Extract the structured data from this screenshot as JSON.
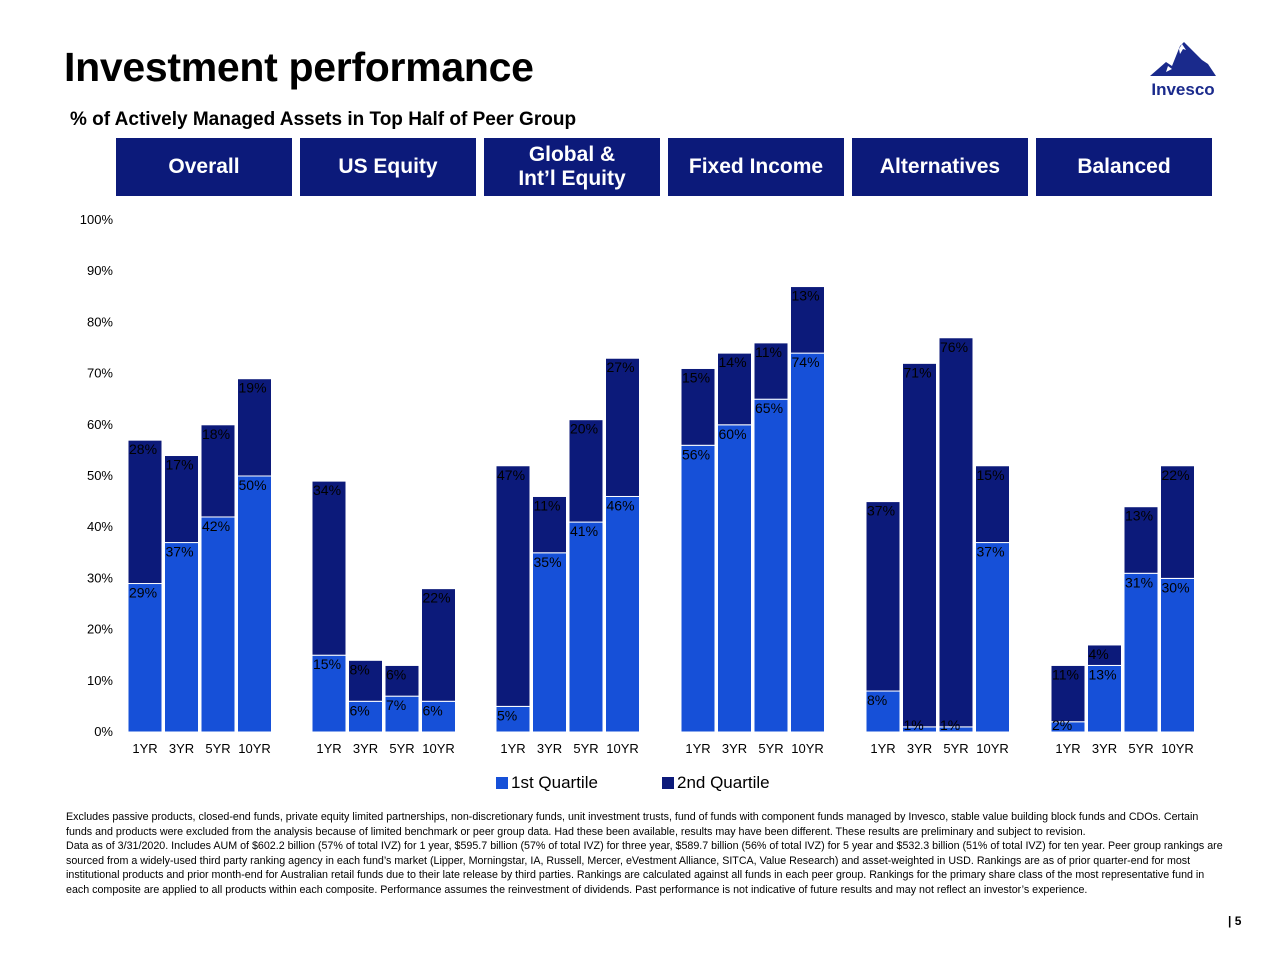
{
  "title": "Investment performance",
  "subtitle": "% of Actively Managed Assets in Top Half of Peer Group",
  "logo": {
    "text": "Invesco",
    "icon": "mountain-logo-icon"
  },
  "colors": {
    "header": "#0c1a7a",
    "q1": "#1650d8",
    "q2": "#0c1a7a"
  },
  "chart_data": {
    "type": "bar",
    "stacked": true,
    "ylim": [
      0,
      100
    ],
    "yticks": [
      "0%",
      "10%",
      "20%",
      "30%",
      "40%",
      "50%",
      "60%",
      "70%",
      "80%",
      "90%",
      "100%"
    ],
    "grid": false,
    "legend_placement": "bottom",
    "groups": [
      {
        "label": "Overall",
        "categories": [
          "1YR",
          "3YR",
          "5YR",
          "10YR"
        ],
        "q1": [
          29,
          37,
          42,
          50
        ],
        "q2": [
          28,
          17,
          18,
          19
        ],
        "q1_labels": [
          "29%",
          "37%",
          "42%",
          "50%"
        ],
        "q2_labels": [
          "28%",
          "17%",
          "18%",
          "19%"
        ]
      },
      {
        "label": "US Equity",
        "categories": [
          "1YR",
          "3YR",
          "5YR",
          "10YR"
        ],
        "q1": [
          15,
          6,
          7,
          6
        ],
        "q2": [
          34,
          8,
          6,
          22
        ],
        "q1_labels": [
          "15%",
          "6%",
          "7%",
          "6%"
        ],
        "q2_labels": [
          "34%",
          "8%",
          "6%",
          "22%"
        ]
      },
      {
        "label": "Global &\nInt’l Equity",
        "categories": [
          "1YR",
          "3YR",
          "5YR",
          "10YR"
        ],
        "q1": [
          5,
          35,
          41,
          46
        ],
        "q2": [
          47,
          11,
          20,
          27
        ],
        "q1_labels": [
          "5%",
          "35%",
          "41%",
          "46%"
        ],
        "q2_labels": [
          "47%",
          "11%",
          "20%",
          "27%"
        ]
      },
      {
        "label": "Fixed Income",
        "categories": [
          "1YR",
          "3YR",
          "5YR",
          "10YR"
        ],
        "q1": [
          56,
          60,
          65,
          74
        ],
        "q2": [
          15,
          14,
          11,
          13
        ],
        "q1_labels": [
          "56%",
          "60%",
          "65%",
          "74%"
        ],
        "q2_labels": [
          "15%",
          "14%",
          "11%",
          "13%"
        ]
      },
      {
        "label": "Alternatives",
        "categories": [
          "1YR",
          "3YR",
          "5YR",
          "10YR"
        ],
        "q1": [
          8,
          1,
          1,
          37
        ],
        "q2": [
          37,
          71,
          76,
          15
        ],
        "q1_labels": [
          "8%",
          "1%",
          "1%",
          "37%"
        ],
        "q2_labels": [
          "37%",
          "71%",
          "76%",
          "15%"
        ]
      },
      {
        "label": "Balanced",
        "categories": [
          "1YR",
          "3YR",
          "5YR",
          "10YR"
        ],
        "q1": [
          2,
          13,
          31,
          30
        ],
        "q2": [
          11,
          4,
          13,
          22
        ],
        "q1_labels": [
          "2%",
          "13%",
          "31%",
          "30%"
        ],
        "q2_labels": [
          "11%",
          "4%",
          "13%",
          "22%"
        ]
      }
    ],
    "legend": [
      "1st Quartile",
      "2nd Quartile"
    ]
  },
  "footnotes": [
    "Excludes passive products, closed-end funds, private equity limited partnerships, non-discretionary funds, unit investment trusts, fund of funds with component funds managed by Invesco, stable value building block funds and CDOs. Certain funds and products were excluded from the analysis because of limited benchmark or peer group data. Had these been available, results may have been different. These results are preliminary and subject to revision.",
    "Data as of 3/31/2020. Includes AUM of $602.2 billion (57% of total IVZ) for 1 year, $595.7 billion (57% of total IVZ) for three year, $589.7 billion (56% of total IVZ) for 5 year and $532.3 billion (51% of total IVZ) for ten year. Peer group rankings are sourced from a widely-used third party ranking agency in each fund’s market (Lipper, Morningstar, IA, Russell, Mercer, eVestment Alliance, SITCA, Value Research) and asset-weighted in USD. Rankings are as of prior quarter-end for most institutional products and prior month-end for Australian retail funds due to their late release by third parties. Rankings are calculated against all funds in each peer group. Rankings for the primary share class of the most representative fund in each composite are applied to all products within each composite. Performance assumes the reinvestment of dividends. Past performance is not indicative of future results and may not reflect an investor’s experience."
  ],
  "page_number": "| 5"
}
